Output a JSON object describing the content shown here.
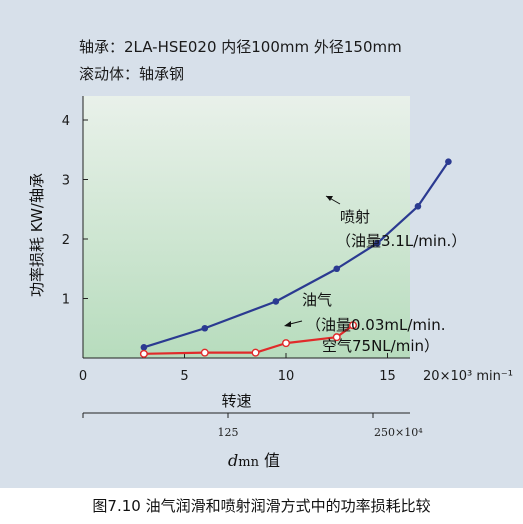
{
  "header": {
    "line1": "轴承：2LA-HSE020 内径100mm 外径150mm",
    "line2": "滚动体：轴承钢"
  },
  "caption": "图7.10 油气润滑和喷射润滑方式中的功率损耗比较",
  "chart_data": {
    "type": "line",
    "ylabel": "功率损耗 KW/轴承",
    "xlabel": "转速",
    "x_unit_label": "20×10³ min⁻¹",
    "x_ticks": [
      0,
      5,
      10,
      15
    ],
    "y_ticks": [
      1,
      2,
      3,
      4
    ],
    "xlim": [
      0,
      20
    ],
    "ylim": [
      0,
      4.5
    ],
    "plot_background": [
      "#e9f1ea",
      "#b7dcbd"
    ],
    "series": [
      {
        "name": "喷射",
        "annotation_lines": [
          "喷射",
          "（油量3.1L/min.）"
        ],
        "color": "#2b3a91",
        "marker": "filled",
        "points": [
          [
            3,
            0.18
          ],
          [
            6,
            0.5
          ],
          [
            9.5,
            0.95
          ],
          [
            12.5,
            1.5
          ],
          [
            14.5,
            1.93
          ],
          [
            16.5,
            2.55
          ],
          [
            18,
            3.3
          ]
        ]
      },
      {
        "name": "油气",
        "annotation_lines": [
          "油气",
          "（油量0.03mL/min.",
          "空气75NL/min）"
        ],
        "color": "#e02a2a",
        "marker": "hollow",
        "points": [
          [
            3,
            0.07
          ],
          [
            6,
            0.09
          ],
          [
            8.5,
            0.09
          ],
          [
            10,
            0.25
          ],
          [
            12.5,
            0.35
          ],
          [
            13.3,
            0.55
          ]
        ]
      }
    ],
    "secondary_axis": {
      "tick_labels": [
        "125",
        "250×10⁴"
      ],
      "label_italic": "d",
      "label_sub": "mn",
      "label_rest": " 值"
    }
  }
}
